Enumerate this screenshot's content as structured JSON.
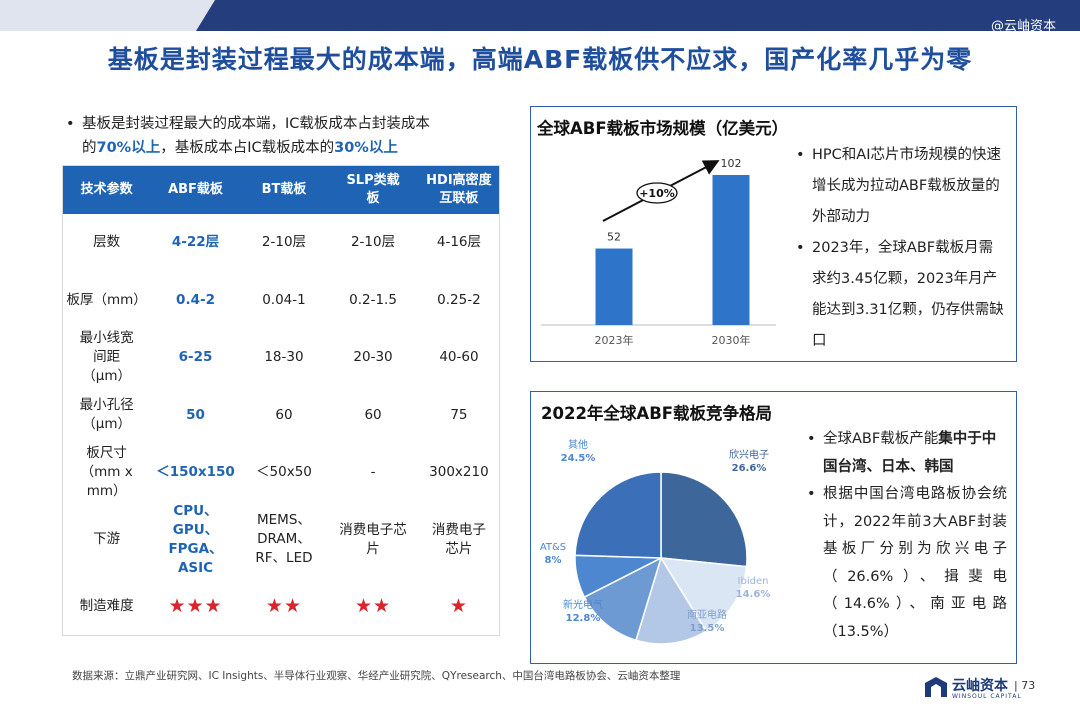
{
  "header": {
    "watermark": "@云岫资本"
  },
  "title": "基板是封装过程最大的成本端，高端ABF载板供不应求，国产化率几乎为零",
  "intro": {
    "line1": "基板是封装过程最大的成本端，IC载板成本占封装成本",
    "line2_hl1": "70%以上",
    "line2_pre": "的",
    "line2_mid": "，基板成本占IC载板成本的",
    "line2_hl2": "30%以上"
  },
  "table": {
    "headers": [
      "技术参数",
      "ABF载板",
      "BT载板",
      "SLP类载板",
      "HDI高密度互联板"
    ],
    "rows": [
      [
        "层数",
        "4-22层",
        "2-10层",
        "2-10层",
        "4-16层"
      ],
      [
        "板厚（mm）",
        "0.4-2",
        "0.04-1",
        "0.2-1.5",
        "0.25-2"
      ],
      [
        "最小线宽间距（μm）",
        "6-25",
        "18-30",
        "20-30",
        "40-60"
      ],
      [
        "最小孔径（μm）",
        "50",
        "60",
        "60",
        "75"
      ],
      [
        "板尺寸（mm x mm）",
        "＜150x150",
        "＜50x50",
        "-",
        "300x210"
      ],
      [
        "下游",
        "CPU、GPU、FPGA、ASIC",
        "MEMS、DRAM、RF、LED",
        "消费电子芯片",
        "消费电子芯片"
      ],
      [
        "制造难度",
        "★★★",
        "★★",
        "★★",
        "★"
      ]
    ]
  },
  "market_box": {
    "title": "全球ABF载板市场规模（亿美元）",
    "bullets": [
      "HPC和AI芯片市场规模的快速增长成为拉动ABF载板放量的外部动力",
      "2023年，全球ABF载板月需求约3.45亿颗，2023年月产能达到3.31亿颗，仍存供需缺口"
    ]
  },
  "share_box": {
    "title": "2022年全球ABF载板竞争格局",
    "bullet1_pre": "全球ABF载板产能",
    "bullet1_bold": "集中于中国台湾、日本、韩国",
    "bullet2": "根据中国台湾电路板协会统计，2022年前3大ABF封装基板厂分别为欣兴电子（26.6%）、揖斐电（14.6%）、南亚电路（13.5%）"
  },
  "chart_data": [
    {
      "type": "bar",
      "categories": [
        "2023年",
        "2030年"
      ],
      "values": [
        52,
        102
      ],
      "title": "全球ABF载板市场规模（亿美元）",
      "annotation": "+10%",
      "color": "#2e74c8"
    },
    {
      "type": "pie",
      "title": "2022年全球ABF载板竞争格局",
      "slices": [
        {
          "label": "欣兴电子",
          "value": 26.6,
          "value_label": "26.6%",
          "color": "#3d679b"
        },
        {
          "label": "Ibiden",
          "value": 14.6,
          "value_label": "14.6%",
          "color": "#dbe6f4"
        },
        {
          "label": "南亚电路",
          "value": 13.5,
          "value_label": "13.5%",
          "color": "#b3c8e6"
        },
        {
          "label": "新光电气",
          "value": 12.8,
          "value_label": "12.8%",
          "color": "#6e9ad3"
        },
        {
          "label": "AT&S",
          "value": 8,
          "value_label": "8%",
          "color": "#4c87cf"
        },
        {
          "label": "其他",
          "value": 24.5,
          "value_label": "24.5%",
          "color": "#3b70b8"
        }
      ]
    }
  ],
  "footer": {
    "source": "数据来源：立鼎产业研究网、IC Insights、半导体行业观察、华经产业研究院、QYresearch、中国台湾电路板协会、云岫资本整理",
    "logo_text": "云岫资本",
    "logo_sub": "WINSOUL CAPITAL",
    "page": "| 73"
  }
}
